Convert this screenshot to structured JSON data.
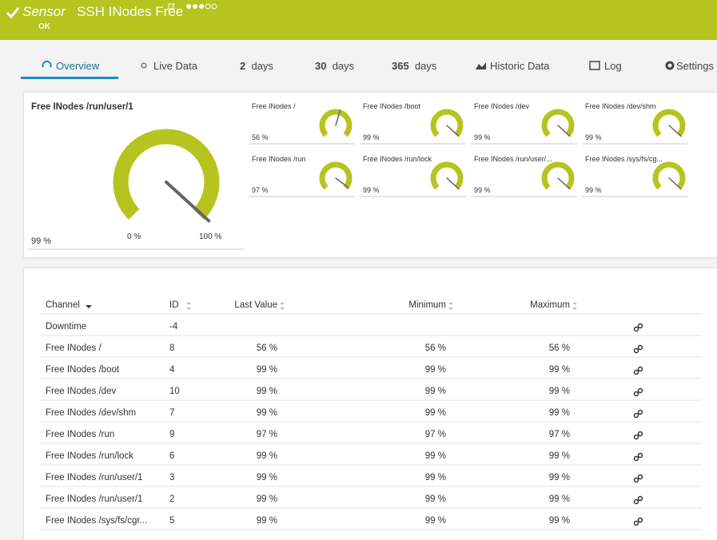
{
  "header": {
    "title_prefix": "Sensor",
    "title": "SSH INodes Free",
    "status": "OK"
  },
  "tabs": [
    {
      "label": "Overview"
    },
    {
      "label": "Live Data"
    },
    {
      "number": "2",
      "label": "days"
    },
    {
      "number": "30",
      "label": "days"
    },
    {
      "number": "365",
      "label": "days"
    },
    {
      "label": "Historic Data"
    },
    {
      "label": "Log"
    },
    {
      "label": "Settings"
    }
  ],
  "main_gauge": {
    "title": "Free INodes /run/user/1",
    "value": 99,
    "value_label": "99 %",
    "min": {
      "value": 0,
      "label": "0 %"
    },
    "max": {
      "value": 100,
      "label": "100 %"
    }
  },
  "gauges": [
    {
      "title": "Free INodes /",
      "value": 56,
      "value_label": "56 %"
    },
    {
      "title": "Free INodes /boot",
      "value": 99,
      "value_label": "99 %"
    },
    {
      "title": "Free INodes /dev",
      "value": 99,
      "value_label": "99 %"
    },
    {
      "title": "Free INodes /dev/shm",
      "value": 99,
      "value_label": "99 %"
    },
    {
      "title": "Free INodes /run",
      "value": 97,
      "value_label": "97 %"
    },
    {
      "title": "Free INodes /run/lock",
      "value": 99,
      "value_label": "99 %"
    },
    {
      "title": "Free INodes /run/user/...",
      "value": 99,
      "value_label": "99 %"
    },
    {
      "title": "Free INodes /sys/fs/cg...",
      "value": 99,
      "value_label": "99 %"
    }
  ],
  "table": {
    "columns": [
      "Channel",
      "ID",
      "Last Value",
      "Minimum",
      "Maximum"
    ],
    "rows": [
      [
        "Downtime",
        "-4"
      ],
      [
        "Free INodes /",
        "8",
        "56 %",
        "56 %",
        "56 %"
      ],
      [
        "Free INodes /boot",
        "4",
        "99 %",
        "99 %",
        "99 %"
      ],
      [
        "Free INodes /dev",
        "10",
        "99 %",
        "99 %",
        "99 %"
      ],
      [
        "Free INodes /dev/shm",
        "7",
        "99 %",
        "99 %",
        "99 %"
      ],
      [
        "Free INodes /run",
        "9",
        "97 %",
        "97 %",
        "97 %"
      ],
      [
        "Free INodes /run/lock",
        "6",
        "99 %",
        "99 %",
        "99 %"
      ],
      [
        "Free INodes /run/user/1",
        "3",
        "99 %",
        "99 %",
        "99 %"
      ],
      [
        "Free INodes /run/user/1",
        "2",
        "99 %",
        "99 %",
        "99 %"
      ],
      [
        "Free INodes /sys/fs/cgr...",
        "5",
        "99 %",
        "99 %",
        "99 %"
      ]
    ]
  }
}
